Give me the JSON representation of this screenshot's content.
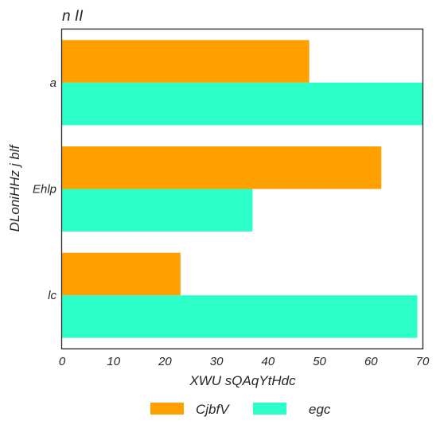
{
  "chart_data": {
    "type": "bar",
    "orientation": "horizontal",
    "title": "n II",
    "xlabel": "XWU sQAqYtHdc",
    "ylabel": "DLoniHHz j blf",
    "categories": [
      "a",
      "Ehlp",
      "lc"
    ],
    "series": [
      {
        "name": "CjbfV",
        "values": [
          48,
          62,
          23
        ],
        "color": "#ff9f00"
      },
      {
        "name": "egc",
        "values": [
          70,
          37,
          69
        ],
        "color": "#2cffc8"
      }
    ],
    "xlim": [
      0,
      70
    ],
    "xticks": [
      "0",
      "10",
      "20",
      "30",
      "40",
      "50",
      "60",
      "70"
    ],
    "grid": false,
    "legend_position": "bottom-center"
  }
}
